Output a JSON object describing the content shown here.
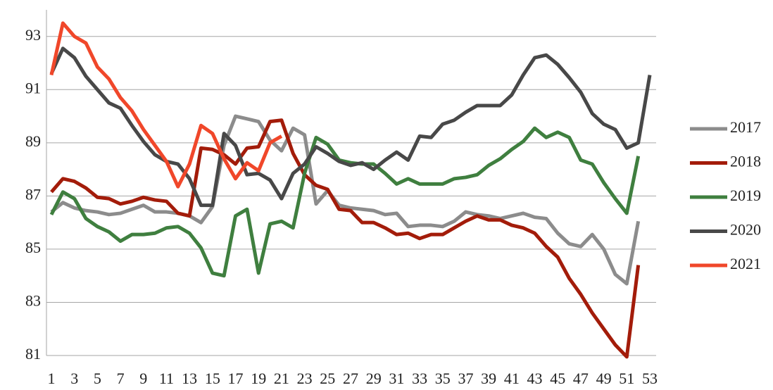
{
  "chart_data": {
    "type": "line",
    "x": [
      1,
      2,
      3,
      4,
      5,
      6,
      7,
      8,
      9,
      10,
      11,
      12,
      13,
      14,
      15,
      16,
      17,
      18,
      19,
      20,
      21,
      22,
      23,
      24,
      25,
      26,
      27,
      28,
      29,
      30,
      31,
      32,
      33,
      34,
      35,
      36,
      37,
      38,
      39,
      40,
      41,
      42,
      43,
      44,
      45,
      46,
      47,
      48,
      49,
      50,
      51,
      52,
      53
    ],
    "xlim": [
      1,
      53
    ],
    "xticks": [
      1,
      3,
      5,
      7,
      9,
      11,
      13,
      15,
      17,
      19,
      21,
      23,
      25,
      27,
      29,
      31,
      33,
      35,
      37,
      39,
      41,
      43,
      45,
      47,
      49,
      51,
      53
    ],
    "ylim": [
      81,
      94
    ],
    "yticks": [
      81,
      83,
      85,
      87,
      89,
      91,
      93
    ],
    "grid": true,
    "legend": "right",
    "series": [
      {
        "name": "2017",
        "color": "#8c8c8c",
        "values": [
          86.4,
          86.75,
          86.55,
          86.45,
          86.4,
          86.3,
          86.35,
          86.5,
          86.65,
          86.4,
          86.4,
          86.35,
          86.25,
          86.0,
          86.6,
          88.9,
          90.0,
          89.9,
          89.8,
          89.1,
          88.7,
          89.55,
          89.3,
          86.7,
          87.2,
          86.65,
          86.55,
          86.5,
          86.45,
          86.3,
          86.35,
          85.85,
          85.9,
          85.9,
          85.85,
          86.05,
          86.4,
          86.3,
          86.25,
          86.15,
          86.25,
          86.35,
          86.2,
          86.15,
          85.6,
          85.2,
          85.1,
          85.55,
          85.0,
          84.05,
          83.7,
          86.05,
          null
        ]
      },
      {
        "name": "2018",
        "color": "#a31c0a",
        "values": [
          87.15,
          87.65,
          87.55,
          87.3,
          86.95,
          86.9,
          86.7,
          86.8,
          86.95,
          86.85,
          86.8,
          86.35,
          86.25,
          88.8,
          88.75,
          88.55,
          88.2,
          88.8,
          88.85,
          89.8,
          89.85,
          88.6,
          87.8,
          87.4,
          87.25,
          86.5,
          86.45,
          86.0,
          86.0,
          85.8,
          85.55,
          85.6,
          85.4,
          85.55,
          85.55,
          85.8,
          86.05,
          86.25,
          86.1,
          86.1,
          85.9,
          85.8,
          85.6,
          85.1,
          84.7,
          83.9,
          83.3,
          82.6,
          82.0,
          81.4,
          80.95,
          84.4,
          null
        ]
      },
      {
        "name": "2019",
        "color": "#3f7f3f",
        "values": [
          86.3,
          87.15,
          86.9,
          86.15,
          85.85,
          85.65,
          85.3,
          85.55,
          85.55,
          85.6,
          85.8,
          85.85,
          85.6,
          85.05,
          84.1,
          84.0,
          86.25,
          86.5,
          84.1,
          85.95,
          86.05,
          85.8,
          87.85,
          89.2,
          88.95,
          88.35,
          88.25,
          88.2,
          88.2,
          87.85,
          87.45,
          87.65,
          87.45,
          87.45,
          87.45,
          87.65,
          87.7,
          87.8,
          88.15,
          88.4,
          88.75,
          89.05,
          89.55,
          89.2,
          89.4,
          89.2,
          88.35,
          88.2,
          87.5,
          86.9,
          86.35,
          88.5,
          null
        ]
      },
      {
        "name": "2020",
        "color": "#484848",
        "values": [
          91.6,
          92.55,
          92.2,
          91.5,
          91.0,
          90.5,
          90.3,
          89.65,
          89.05,
          88.55,
          88.3,
          88.2,
          87.65,
          86.65,
          86.65,
          89.35,
          88.9,
          87.8,
          87.85,
          87.6,
          86.9,
          87.85,
          88.2,
          88.85,
          88.6,
          88.3,
          88.15,
          88.25,
          88.0,
          88.35,
          88.65,
          88.35,
          89.25,
          89.2,
          89.7,
          89.85,
          90.15,
          90.4,
          90.4,
          90.4,
          90.8,
          91.55,
          92.2,
          92.3,
          91.95,
          91.45,
          90.9,
          90.1,
          89.7,
          89.5,
          88.8,
          89.0,
          91.55
        ]
      },
      {
        "name": "2021",
        "color": "#f0472a",
        "values": [
          91.55,
          93.5,
          93.0,
          92.75,
          91.85,
          91.4,
          90.7,
          90.2,
          89.5,
          88.9,
          88.3,
          87.35,
          88.2,
          89.65,
          89.35,
          88.4,
          87.65,
          88.25,
          87.95,
          89.0,
          89.25,
          null,
          null,
          null,
          null,
          null,
          null,
          null,
          null,
          null,
          null,
          null,
          null,
          null,
          null,
          null,
          null,
          null,
          null,
          null,
          null,
          null,
          null,
          null,
          null,
          null,
          null,
          null,
          null,
          null,
          null,
          null,
          null
        ]
      }
    ]
  }
}
